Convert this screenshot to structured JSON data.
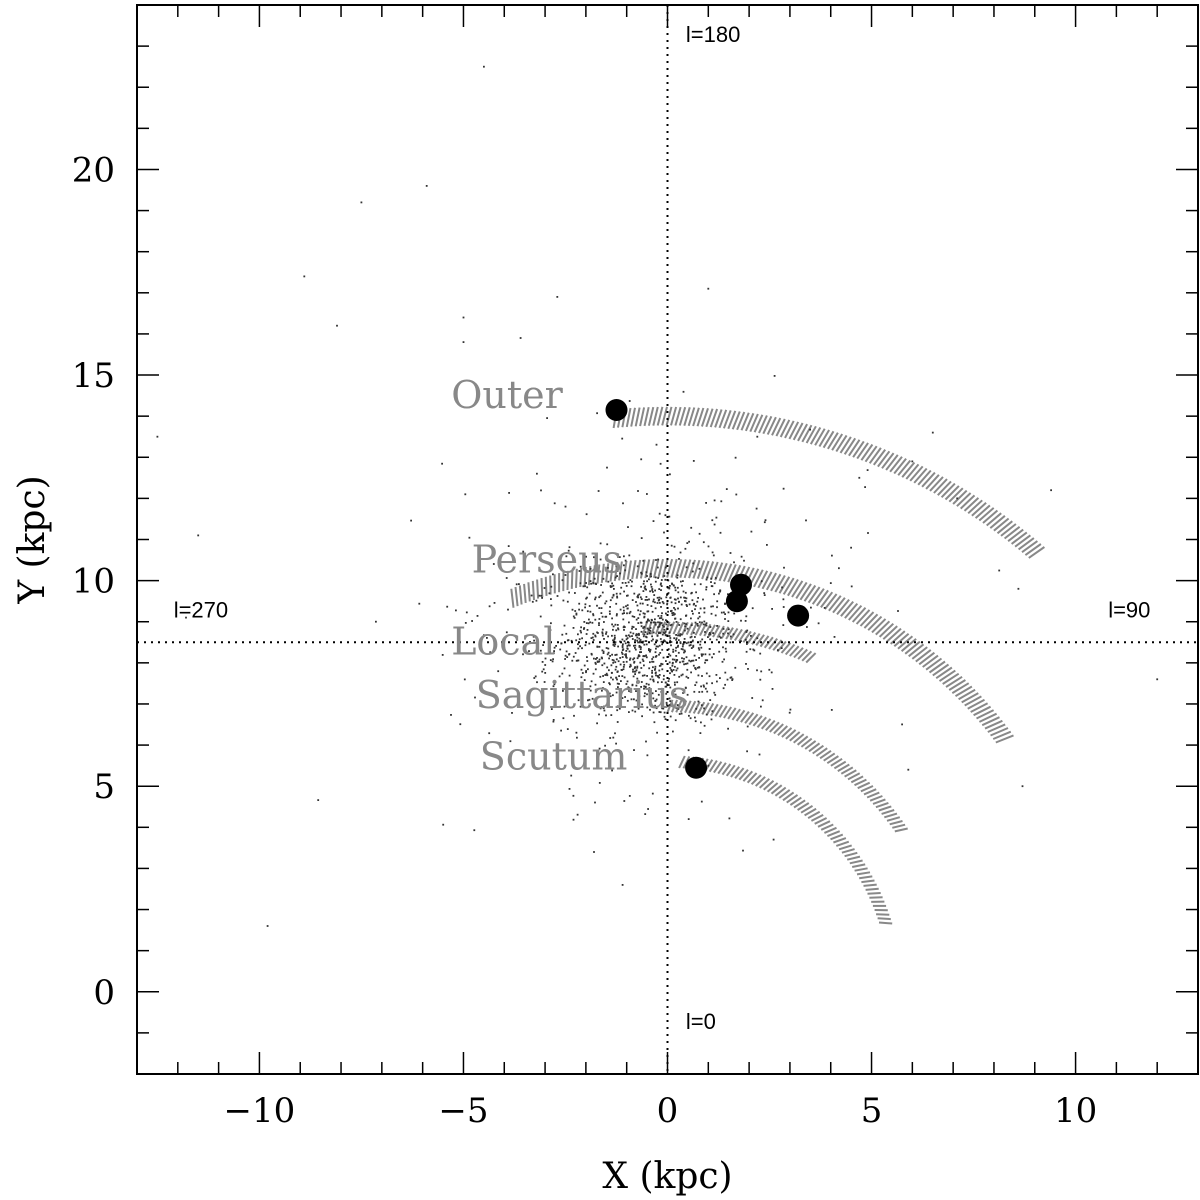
{
  "chart_data": {
    "type": "scatter",
    "xlabel": "X (kpc)",
    "ylabel": "Y (kpc)",
    "xlim": [
      -13,
      13
    ],
    "ylim": [
      -2,
      24
    ],
    "xticks": [
      -10,
      -5,
      0,
      5,
      10
    ],
    "yticks": [
      0,
      5,
      10,
      15,
      20
    ],
    "grid": false,
    "reference_lines": [
      {
        "orientation": "vertical",
        "value": 0
      },
      {
        "orientation": "horizontal",
        "value": 8.5
      }
    ],
    "longitude_labels": [
      {
        "text": "l=180",
        "x": 0.45,
        "y": 23.1
      },
      {
        "text": "l=0",
        "x": 0.45,
        "y": -0.9
      },
      {
        "text": "l=270",
        "x": -12.1,
        "y": 9.1
      },
      {
        "text": "l=90",
        "x": 10.8,
        "y": 9.1
      }
    ],
    "arm_labels": [
      {
        "text": "Outer",
        "x": -5.3,
        "y": 14.2
      },
      {
        "text": "Perseus",
        "x": -4.8,
        "y": 10.2
      },
      {
        "text": "Local",
        "x": -5.3,
        "y": 8.2
      },
      {
        "text": "Sagittarius",
        "x": -4.7,
        "y": 6.9
      },
      {
        "text": "Scutum",
        "x": -4.6,
        "y": 5.4
      }
    ],
    "spiral_arms": [
      {
        "arm": "Outer",
        "radius": 14.0,
        "width": 0.45,
        "angle_start": -5.5,
        "angle_end": 40.0
      },
      {
        "arm": "Perseus",
        "radius": 10.3,
        "width": 0.45,
        "angle_start": -22.0,
        "angle_end": 53.0
      },
      {
        "arm": "Local",
        "radius": 8.85,
        "width": 0.3,
        "angle_start": -4.0,
        "angle_end": 23.0
      },
      {
        "arm": "Sagittarius",
        "radius": 6.95,
        "width": 0.3,
        "angle_start": 0.0,
        "angle_end": 55.0
      },
      {
        "arm": "Scutum",
        "radius": 5.6,
        "width": 0.3,
        "angle_start": 3.0,
        "angle_end": 72.0
      }
    ],
    "large_points": [
      {
        "x": -1.25,
        "y": 14.15
      },
      {
        "x": 1.8,
        "y": 9.9
      },
      {
        "x": 1.7,
        "y": 9.5
      },
      {
        "x": 3.2,
        "y": 9.15
      },
      {
        "x": 0.7,
        "y": 5.45
      }
    ],
    "scatter_points": {
      "center": [
        -0.5,
        8.5
      ],
      "count_core": 1100,
      "count_halo": 260,
      "core_sigma": [
        1.1,
        1.0
      ],
      "halo_sigma": [
        2.6,
        2.2
      ],
      "outliers": [
        [
          -4.5,
          22.5
        ],
        [
          -5.9,
          19.6
        ],
        [
          -7.5,
          19.2
        ],
        [
          -8.9,
          17.4
        ],
        [
          -2.7,
          16.9
        ],
        [
          -5.0,
          16.4
        ],
        [
          -8.1,
          16.2
        ],
        [
          -3.6,
          15.9
        ],
        [
          -5.0,
          15.8
        ],
        [
          1.0,
          17.1
        ],
        [
          -12.5,
          13.5
        ],
        [
          -9.8,
          1.6
        ],
        [
          -1.8,
          3.4
        ],
        [
          -1.1,
          2.6
        ],
        [
          2.6,
          3.7
        ],
        [
          5.9,
          5.4
        ],
        [
          8.7,
          5.0
        ],
        [
          12.0,
          7.6
        ],
        [
          8.6,
          9.8
        ],
        [
          9.4,
          12.2
        ],
        [
          7.1,
          12.0
        ],
        [
          6.5,
          13.6
        ],
        [
          4.7,
          12.5
        ],
        [
          -11.5,
          11.1
        ],
        [
          -11.8,
          9.1
        ],
        [
          -3.2,
          12.6
        ],
        [
          -2.5,
          11.8
        ],
        [
          2.2,
          13.5
        ],
        [
          6.0,
          12.9
        ],
        [
          4.5,
          10.8
        ]
      ]
    }
  }
}
